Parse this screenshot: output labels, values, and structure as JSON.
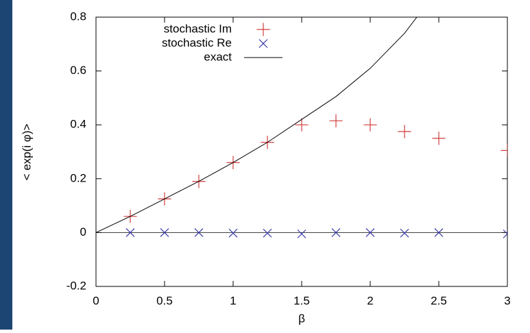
{
  "chart_data": {
    "type": "scatter",
    "xlabel": "β",
    "ylabel": "< exp(i φ)>",
    "xlim": [
      0,
      3
    ],
    "ylim": [
      -0.2,
      0.8
    ],
    "xticks": [
      0,
      0.5,
      1,
      1.5,
      2,
      2.5,
      3
    ],
    "yticks": [
      -0.2,
      0,
      0.2,
      0.4,
      0.6,
      0.8
    ],
    "zeroaxis": true,
    "legend": "top-left",
    "series": [
      {
        "name": "stochastic Im",
        "color": "#d03c3c",
        "marker": "plus",
        "x": [
          0.25,
          0.5,
          0.75,
          1,
          1.25,
          1.5,
          1.75,
          2,
          2.25,
          2.5,
          3
        ],
        "values": [
          0.06,
          0.125,
          0.19,
          0.26,
          0.335,
          0.4,
          0.415,
          0.4,
          0.375,
          0.35,
          0.305
        ]
      },
      {
        "name": "stochastic Re",
        "color": "#3a3aa8",
        "marker": "cross",
        "x": [
          0.25,
          0.5,
          0.75,
          1,
          1.25,
          1.5,
          1.75,
          2,
          2.25,
          2.5,
          3
        ],
        "values": [
          0,
          0,
          0,
          -0.002,
          -0.002,
          -0.005,
          0,
          0,
          -0.002,
          0,
          -0.005
        ]
      },
      {
        "name": "exact",
        "color": "#000000",
        "marker": "line",
        "x": [
          0,
          0.25,
          0.5,
          0.75,
          1,
          1.25,
          1.5,
          1.75,
          2,
          2.25,
          2.34
        ],
        "values": [
          0,
          0.06,
          0.125,
          0.19,
          0.26,
          0.335,
          0.42,
          0.505,
          0.61,
          0.74,
          0.8
        ]
      }
    ]
  }
}
